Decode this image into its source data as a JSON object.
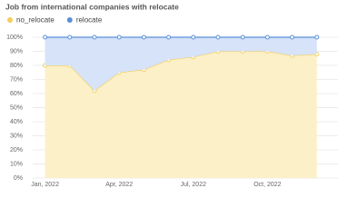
{
  "chart_data": {
    "type": "stacked_area",
    "title": "Job from international companies with relocate",
    "categories": [
      "Jan, 2022",
      null,
      null,
      "Apr, 2022",
      null,
      null,
      "Jul, 2022",
      null,
      null,
      "Oct, 2022",
      null,
      null
    ],
    "series": [
      {
        "name": "no_relocate",
        "color": "#f2cf5b",
        "values": [
          80,
          80,
          62,
          75,
          77,
          84,
          86,
          90,
          90,
          90,
          87,
          88
        ]
      },
      {
        "name": "relocate",
        "color": "#5b8fd9",
        "values": [
          20,
          20,
          38,
          25,
          23,
          16,
          14,
          10,
          10,
          10,
          13,
          12
        ]
      }
    ],
    "ylim": [
      0,
      100
    ],
    "yticks": [
      {
        "value": 0,
        "label": "0%"
      },
      {
        "value": 10,
        "label": "10%"
      },
      {
        "value": 20,
        "label": "20%"
      },
      {
        "value": 30,
        "label": "30%"
      },
      {
        "value": 40,
        "label": "40%"
      },
      {
        "value": 50,
        "label": "50%"
      },
      {
        "value": 60,
        "label": "60%"
      },
      {
        "value": 70,
        "label": "70%"
      },
      {
        "value": 80,
        "label": "80%"
      },
      {
        "value": 90,
        "label": "90%"
      },
      {
        "value": 100,
        "label": "100%"
      }
    ],
    "grid": true,
    "legend": "top-left"
  }
}
